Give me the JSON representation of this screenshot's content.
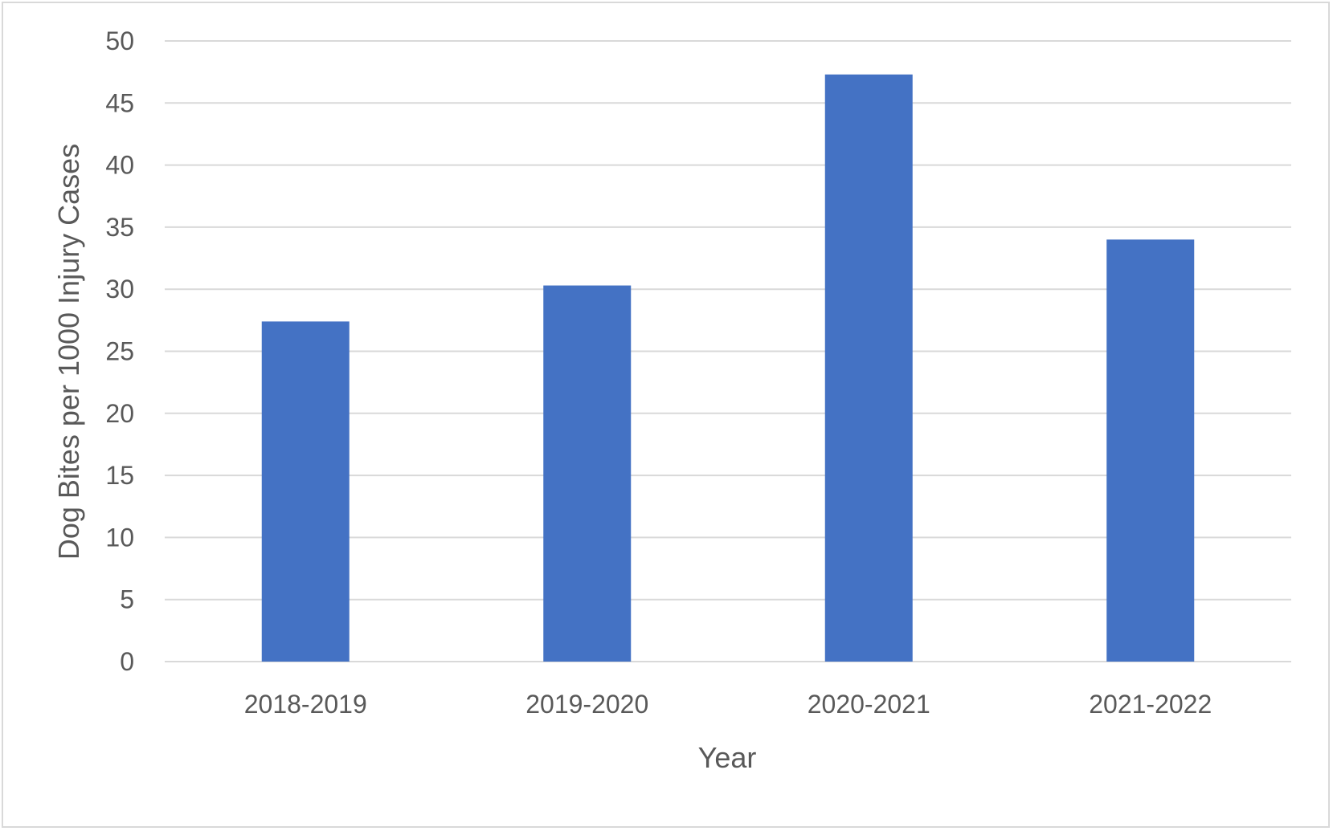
{
  "chart_data": {
    "type": "bar",
    "title": "",
    "xlabel": "Year",
    "ylabel": "Dog Bites per 1000 Injury Cases",
    "categories": [
      "2018-2019",
      "2019-2020",
      "2020-2021",
      "2021-2022"
    ],
    "values": [
      27.4,
      30.3,
      47.3,
      34.0
    ],
    "ylim": [
      0,
      50
    ],
    "yticks": [
      "0",
      "5",
      "10",
      "15",
      "20",
      "25",
      "30",
      "35",
      "40",
      "45",
      "50"
    ],
    "grid": true,
    "legend": "none",
    "colors": {
      "bar": "#4472C4",
      "grid": "#d9d9d9",
      "text": "#595959",
      "frame": "#d9d9d9"
    }
  }
}
